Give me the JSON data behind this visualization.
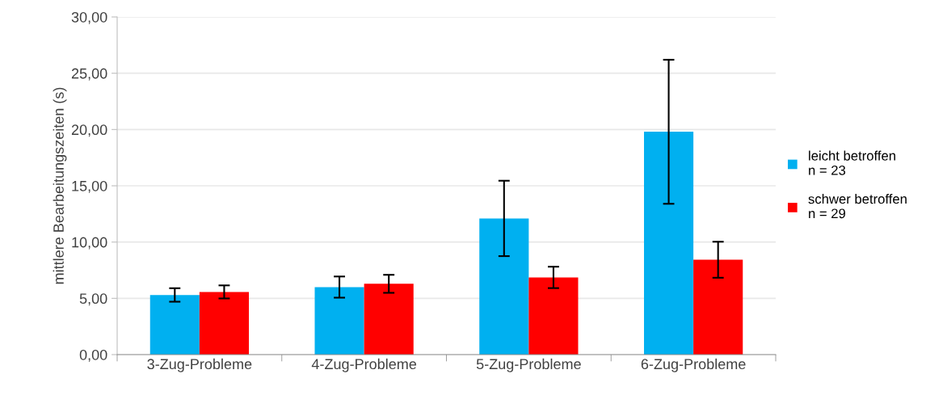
{
  "chart_data": {
    "type": "bar",
    "ylabel": "mittlere Bearbeitungszeiten (s)",
    "categories": [
      "3-Zug-Probleme",
      "4-Zug-Probleme",
      "5-Zug-Probleme",
      "6-Zug-Probleme"
    ],
    "series": [
      {
        "name": "leicht betroffen\nn = 23",
        "color": "#00b0f0",
        "values": [
          5.3,
          6.0,
          12.1,
          19.8
        ],
        "errors": [
          0.6,
          0.94,
          3.35,
          6.4
        ]
      },
      {
        "name": "schwer betroffen\nn = 29",
        "color": "#ff0000",
        "values": [
          5.57,
          6.29,
          6.86,
          8.43
        ],
        "errors": [
          0.58,
          0.8,
          0.95,
          1.6
        ]
      }
    ],
    "ylim": [
      0,
      30
    ],
    "yticks": [
      {
        "value": 0,
        "label": "0,00"
      },
      {
        "value": 5,
        "label": "5,00"
      },
      {
        "value": 10,
        "label": "10,00"
      },
      {
        "value": 15,
        "label": "15,00"
      },
      {
        "value": 20,
        "label": "20,00"
      },
      {
        "value": 25,
        "label": "25,00"
      },
      {
        "value": 30,
        "label": "30,00"
      }
    ],
    "grid": "y",
    "legend": "right"
  }
}
